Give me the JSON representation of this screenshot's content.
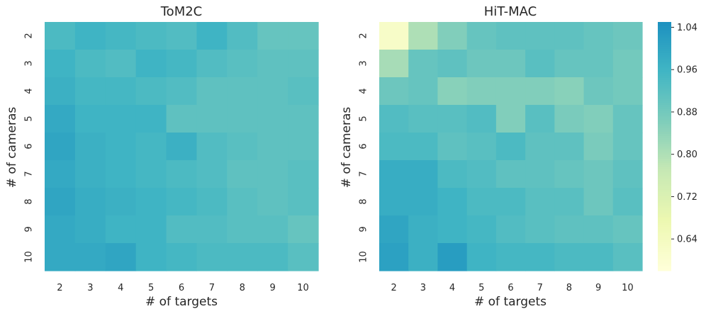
{
  "chart_data": [
    {
      "type": "heatmap",
      "title": "ToM2C",
      "xlabel": "# of targets",
      "ylabel": "# of cameras",
      "x_ticks": [
        "2",
        "3",
        "4",
        "5",
        "6",
        "7",
        "8",
        "9",
        "10"
      ],
      "y_ticks": [
        "2",
        "3",
        "4",
        "5",
        "6",
        "7",
        "8",
        "9",
        "10"
      ],
      "values": [
        [
          0.94,
          0.96,
          0.95,
          0.94,
          0.93,
          0.96,
          0.93,
          0.9,
          0.9
        ],
        [
          0.96,
          0.94,
          0.93,
          0.96,
          0.95,
          0.93,
          0.92,
          0.91,
          0.91
        ],
        [
          0.97,
          0.95,
          0.95,
          0.94,
          0.93,
          0.91,
          0.91,
          0.91,
          0.92
        ],
        [
          0.99,
          0.96,
          0.96,
          0.96,
          0.91,
          0.91,
          0.91,
          0.91,
          0.91
        ],
        [
          1.0,
          0.97,
          0.96,
          0.95,
          0.97,
          0.93,
          0.92,
          0.91,
          0.91
        ],
        [
          0.99,
          0.97,
          0.96,
          0.95,
          0.94,
          0.93,
          0.91,
          0.91,
          0.92
        ],
        [
          1.0,
          0.98,
          0.97,
          0.96,
          0.95,
          0.94,
          0.92,
          0.91,
          0.92
        ],
        [
          0.99,
          0.98,
          0.96,
          0.96,
          0.93,
          0.93,
          0.92,
          0.92,
          0.9
        ],
        [
          0.99,
          0.99,
          1.0,
          0.96,
          0.95,
          0.94,
          0.94,
          0.94,
          0.92
        ]
      ]
    },
    {
      "type": "heatmap",
      "title": "HiT-MAC",
      "xlabel": "# of targets",
      "ylabel": "# of cameras",
      "x_ticks": [
        "2",
        "3",
        "4",
        "5",
        "6",
        "7",
        "8",
        "9",
        "10"
      ],
      "y_ticks": [
        "2",
        "3",
        "4",
        "5",
        "6",
        "7",
        "8",
        "9",
        "10"
      ],
      "values": [
        [
          0.62,
          0.8,
          0.86,
          0.9,
          0.91,
          0.91,
          0.91,
          0.9,
          0.89
        ],
        [
          0.81,
          0.9,
          0.91,
          0.89,
          0.89,
          0.92,
          0.9,
          0.9,
          0.88
        ],
        [
          0.89,
          0.9,
          0.85,
          0.86,
          0.86,
          0.86,
          0.85,
          0.89,
          0.88
        ],
        [
          0.93,
          0.92,
          0.92,
          0.93,
          0.86,
          0.92,
          0.87,
          0.86,
          0.9
        ],
        [
          0.94,
          0.94,
          0.91,
          0.92,
          0.94,
          0.91,
          0.91,
          0.87,
          0.9
        ],
        [
          0.98,
          0.98,
          0.94,
          0.93,
          0.91,
          0.91,
          0.9,
          0.89,
          0.91
        ],
        [
          0.98,
          0.98,
          0.96,
          0.94,
          0.94,
          0.92,
          0.92,
          0.89,
          0.92
        ],
        [
          1.0,
          0.97,
          0.96,
          0.95,
          0.93,
          0.92,
          0.91,
          0.91,
          0.9
        ],
        [
          1.01,
          0.97,
          1.02,
          0.96,
          0.95,
          0.95,
          0.94,
          0.94,
          0.92
        ]
      ]
    }
  ],
  "colorbar": {
    "min": 0.58,
    "max": 1.05,
    "ticks": [
      "1.04",
      "0.96",
      "0.88",
      "0.80",
      "0.72",
      "0.64"
    ],
    "tick_values": [
      1.04,
      0.96,
      0.88,
      0.8,
      0.72,
      0.64
    ],
    "colormap": [
      "#ffffd9",
      "#edf8b1",
      "#c7e9b4",
      "#7fcdbb",
      "#41b6c4",
      "#1d91c0"
    ]
  }
}
